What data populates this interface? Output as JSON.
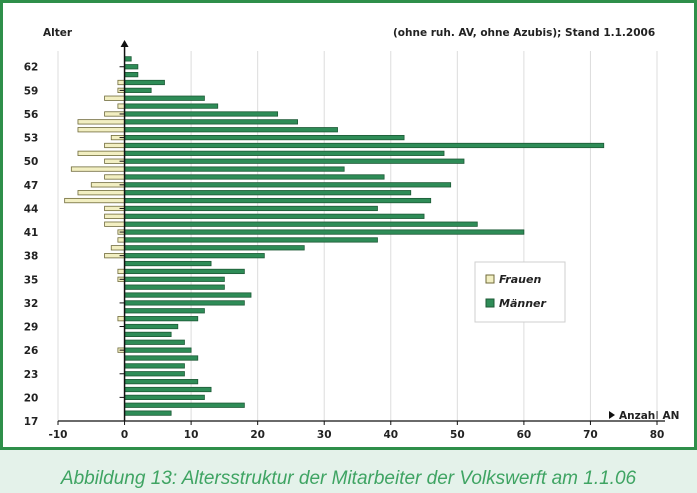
{
  "caption": "Abbildung 13: Altersstruktur der Mitarbeiter der Volkswerft am 1.1.06",
  "colors": {
    "frame": "#2f8f4a",
    "background": "#e4f2ea",
    "caption": "#3fa463",
    "frauen": "#f2efc2",
    "maenner": "#2e8c57"
  },
  "chart_data": {
    "type": "bar",
    "orientation": "horizontal",
    "title": "",
    "subtitle": "(ohne ruh. AV, ohne Azubis); Stand 1.1.2006",
    "ylabel": "Alter",
    "xlabel": "Anzahl AN",
    "xlim": [
      -10,
      80
    ],
    "ylim": [
      17,
      64
    ],
    "xticks": [
      -10,
      0,
      10,
      20,
      30,
      40,
      50,
      60,
      70,
      80
    ],
    "yticks": [
      17,
      20,
      23,
      26,
      29,
      32,
      35,
      38,
      41,
      44,
      47,
      50,
      53,
      56,
      59,
      62
    ],
    "legend_position": "right-middle",
    "grid": "vertical",
    "categories": [
      18,
      19,
      20,
      21,
      22,
      23,
      24,
      25,
      26,
      27,
      28,
      29,
      30,
      31,
      32,
      33,
      34,
      35,
      36,
      37,
      38,
      39,
      40,
      41,
      42,
      43,
      44,
      45,
      46,
      47,
      48,
      49,
      50,
      51,
      52,
      53,
      54,
      55,
      56,
      57,
      58,
      59,
      60,
      61,
      62,
      63
    ],
    "series": [
      {
        "name": "Frauen",
        "values": [
          0,
          0,
          0,
          0,
          0,
          0,
          0,
          0,
          -1,
          0,
          0,
          0,
          -1,
          0,
          0,
          0,
          0,
          -1,
          -1,
          0,
          -3,
          -2,
          -1,
          -1,
          -3,
          -3,
          -3,
          -9,
          -7,
          -5,
          -3,
          -8,
          -3,
          -7,
          -3,
          -2,
          -7,
          -7,
          -3,
          -1,
          -3,
          -1,
          -1,
          0,
          0,
          0
        ]
      },
      {
        "name": "Männer",
        "values": [
          7,
          18,
          12,
          13,
          11,
          9,
          9,
          11,
          10,
          9,
          7,
          8,
          11,
          12,
          18,
          19,
          15,
          15,
          18,
          13,
          21,
          27,
          38,
          60,
          53,
          45,
          38,
          46,
          43,
          49,
          39,
          33,
          51,
          48,
          72,
          42,
          32,
          26,
          23,
          14,
          12,
          4,
          6,
          2,
          2,
          1
        ]
      }
    ]
  }
}
